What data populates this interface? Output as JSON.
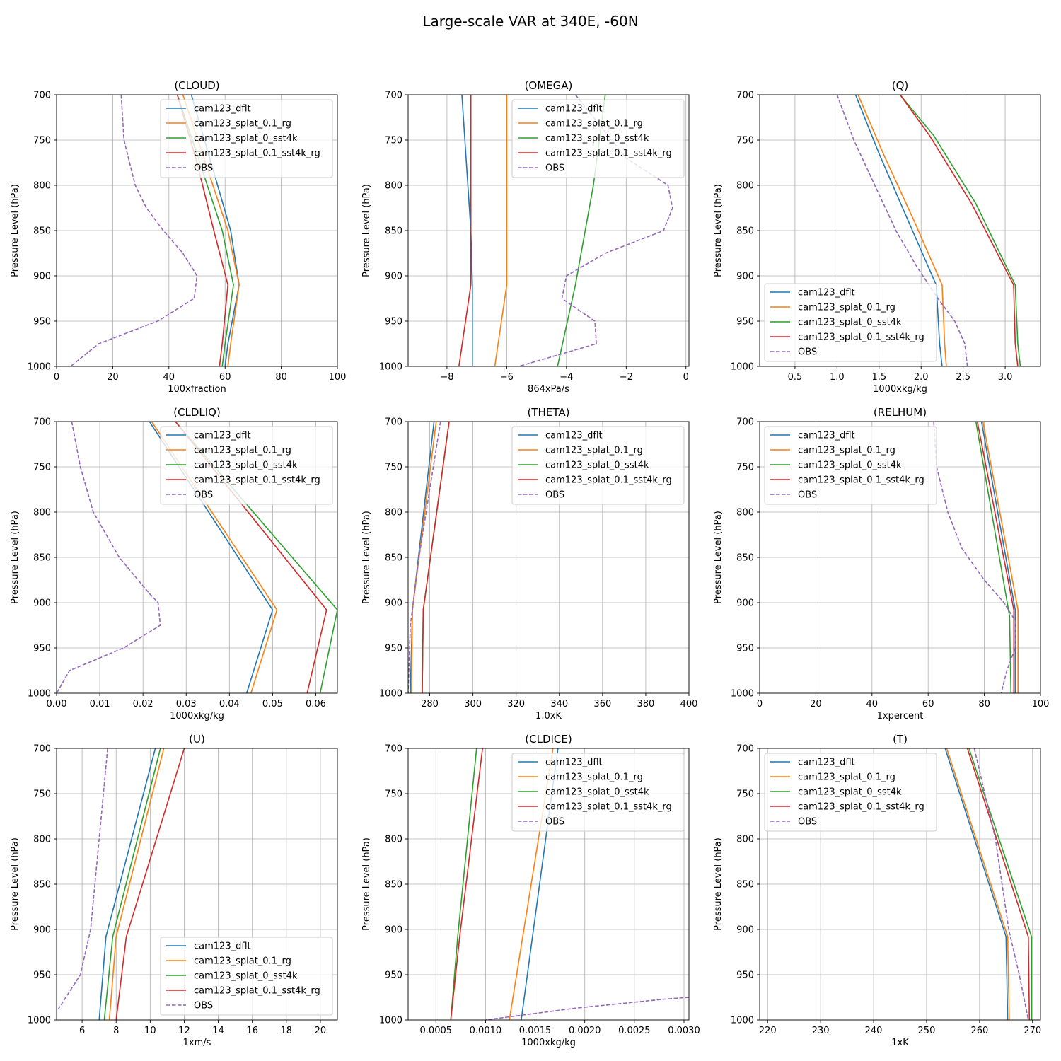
{
  "suptitle": "Large-scale VAR at 340E, -60N",
  "series_names": [
    "cam123_dflt",
    "cam123_splat_0.1_rg",
    "cam123_splat_0_sst4k",
    "cam123_splat_0.1_sst4k_rg",
    "OBS"
  ],
  "series_colors": [
    "#1f77b4",
    "#ff7f0e",
    "#2ca02c",
    "#d62728",
    "#9467bd"
  ],
  "chart_data": [
    {
      "type": "line",
      "title": "(CLOUD)",
      "xlabel": "100xfraction",
      "ylabel": "Pressure Level (hPa)",
      "xlim": [
        0,
        100
      ],
      "ylim": [
        1000,
        700
      ],
      "xticks": [
        0,
        20,
        40,
        60,
        80,
        100
      ],
      "xtick_labels": [
        "0",
        "20",
        "40",
        "60",
        "80",
        "100"
      ],
      "yticks": [
        700,
        750,
        800,
        850,
        900,
        950,
        1000
      ],
      "legend": "upper-right",
      "series": [
        {
          "name": "cam123_dflt",
          "x": [
            48,
            55,
            62,
            65,
            61,
            60
          ],
          "y": [
            700,
            775,
            850,
            910,
            975,
            1000
          ]
        },
        {
          "name": "cam123_splat_0.1_rg",
          "x": [
            45,
            53,
            61,
            65,
            62,
            61
          ],
          "y": [
            700,
            775,
            850,
            910,
            975,
            1000
          ]
        },
        {
          "name": "cam123_splat_0_sst4k",
          "x": [
            43,
            51,
            59,
            63,
            60,
            59
          ],
          "y": [
            700,
            775,
            850,
            910,
            975,
            1000
          ]
        },
        {
          "name": "cam123_splat_0.1_sst4k_rg",
          "x": [
            43,
            50,
            56,
            61,
            59,
            58
          ],
          "y": [
            700,
            775,
            850,
            910,
            975,
            1000
          ]
        },
        {
          "name": "OBS",
          "x": [
            23,
            24,
            26,
            28,
            32,
            38,
            45,
            50,
            49,
            36,
            15,
            5
          ],
          "y": [
            700,
            750,
            775,
            800,
            825,
            850,
            875,
            900,
            925,
            950,
            975,
            1000
          ]
        }
      ]
    },
    {
      "type": "line",
      "title": "(OMEGA)",
      "xlabel": "864xPa/s",
      "ylabel": "Pressure Level (hPa)",
      "xlim": [
        -9.3,
        0.1
      ],
      "ylim": [
        1000,
        700
      ],
      "xticks": [
        -8,
        -6,
        -4,
        -2,
        0
      ],
      "xtick_labels": [
        "−8",
        "−6",
        "−4",
        "−2",
        "0"
      ],
      "yticks": [
        700,
        750,
        800,
        850,
        900,
        950,
        1000
      ],
      "legend": "upper-right",
      "series": [
        {
          "name": "cam123_dflt",
          "x": [
            -7.5,
            -7.2,
            -7.15,
            -7.15
          ],
          "y": [
            700,
            850,
            910,
            1000
          ]
        },
        {
          "name": "cam123_splat_0.1_rg",
          "x": [
            -6.0,
            -6.0,
            -6.0,
            -6.4
          ],
          "y": [
            700,
            850,
            910,
            1000
          ]
        },
        {
          "name": "cam123_splat_0_sst4k",
          "x": [
            -2.7,
            -3.1,
            -3.7,
            -4.3
          ],
          "y": [
            700,
            800,
            910,
            1000
          ]
        },
        {
          "name": "cam123_splat_0.1_sst4k_rg",
          "x": [
            -7.2,
            -7.2,
            -7.2,
            -7.6
          ],
          "y": [
            700,
            850,
            910,
            1000
          ]
        },
        {
          "name": "OBS",
          "x": [
            -3.7,
            -2.0,
            -0.6,
            -0.45,
            -0.75,
            -2.7,
            -4.0,
            -4.15,
            -3.05,
            -3.0,
            -5.6
          ],
          "y": [
            700,
            770,
            800,
            825,
            850,
            875,
            900,
            925,
            950,
            975,
            1000
          ]
        }
      ]
    },
    {
      "type": "line",
      "title": "(Q)",
      "xlabel": "1000xkg/kg",
      "ylabel": "Pressure Level (hPa)",
      "xlim": [
        0.08,
        3.42
      ],
      "ylim": [
        1000,
        700
      ],
      "xticks": [
        0.5,
        1.0,
        1.5,
        2.0,
        2.5,
        3.0
      ],
      "xtick_labels": [
        "0.5",
        "1.0",
        "1.5",
        "2.0",
        "2.5",
        "3.0"
      ],
      "yticks": [
        700,
        750,
        800,
        850,
        900,
        950,
        1000
      ],
      "legend": "lower-left",
      "series": [
        {
          "name": "cam123_dflt",
          "x": [
            1.22,
            1.5,
            1.85,
            2.18,
            2.22,
            2.25
          ],
          "y": [
            700,
            765,
            840,
            910,
            975,
            1000
          ]
        },
        {
          "name": "cam123_splat_0.1_rg",
          "x": [
            1.25,
            1.55,
            1.92,
            2.25,
            2.28,
            2.3
          ],
          "y": [
            700,
            765,
            840,
            910,
            975,
            1000
          ]
        },
        {
          "name": "cam123_splat_0_sst4k",
          "x": [
            1.75,
            2.15,
            2.65,
            3.12,
            3.15,
            3.18
          ],
          "y": [
            700,
            745,
            820,
            910,
            975,
            1000
          ]
        },
        {
          "name": "cam123_splat_0.1_sst4k_rg",
          "x": [
            1.75,
            2.1,
            2.6,
            3.1,
            3.12,
            3.15
          ],
          "y": [
            700,
            745,
            820,
            910,
            975,
            1000
          ]
        },
        {
          "name": "OBS",
          "x": [
            1.0,
            1.2,
            1.45,
            1.7,
            1.95,
            2.2,
            2.4,
            2.52,
            2.55
          ],
          "y": [
            700,
            750,
            800,
            850,
            890,
            925,
            950,
            975,
            1000
          ]
        }
      ]
    },
    {
      "type": "line",
      "title": "(CLDLIQ)",
      "xlabel": "1000xkg/kg",
      "ylabel": "Pressure Level (hPa)",
      "xlim": [
        0,
        0.065
      ],
      "ylim": [
        1000,
        700
      ],
      "xticks": [
        0,
        0.01,
        0.02,
        0.03,
        0.04,
        0.05,
        0.06
      ],
      "xtick_labels": [
        "0.00",
        "0.01",
        "0.02",
        "0.03",
        "0.04",
        "0.05",
        "0.06"
      ],
      "yticks": [
        700,
        750,
        800,
        850,
        900,
        950,
        1000
      ],
      "legend": "upper-right",
      "series": [
        {
          "name": "cam123_dflt",
          "x": [
            0.0215,
            0.05,
            0.044
          ],
          "y": [
            700,
            908,
            1000
          ]
        },
        {
          "name": "cam123_splat_0.1_rg",
          "x": [
            0.022,
            0.051,
            0.045
          ],
          "y": [
            700,
            908,
            1000
          ]
        },
        {
          "name": "cam123_splat_0_sst4k",
          "x": [
            0.0275,
            0.065,
            0.061
          ],
          "y": [
            700,
            908,
            1000
          ]
        },
        {
          "name": "cam123_splat_0.1_sst4k_rg",
          "x": [
            0.0275,
            0.0625,
            0.058
          ],
          "y": [
            700,
            908,
            1000
          ]
        },
        {
          "name": "OBS",
          "x": [
            0.0035,
            0.0055,
            0.0085,
            0.0145,
            0.0215,
            0.0235,
            0.024,
            0.0155,
            0.003,
            0.0
          ],
          "y": [
            700,
            750,
            800,
            850,
            890,
            900,
            925,
            950,
            975,
            1000
          ]
        }
      ]
    },
    {
      "type": "line",
      "title": "(THETA)",
      "xlabel": "1.0xK",
      "ylabel": "Pressure Level (hPa)",
      "xlim": [
        270,
        400
      ],
      "ylim": [
        1000,
        700
      ],
      "xticks": [
        280,
        300,
        320,
        340,
        360,
        380,
        400
      ],
      "xtick_labels": [
        "280",
        "300",
        "320",
        "340",
        "360",
        "380",
        "400"
      ],
      "yticks": [
        700,
        750,
        800,
        850,
        900,
        950,
        1000
      ],
      "legend": "upper-right",
      "series": [
        {
          "name": "cam123_dflt",
          "x": [
            282,
            272,
            271
          ],
          "y": [
            700,
            908,
            1000
          ]
        },
        {
          "name": "cam123_splat_0.1_rg",
          "x": [
            283,
            272,
            271.5
          ],
          "y": [
            700,
            908,
            1000
          ]
        },
        {
          "name": "cam123_splat_0_sst4k",
          "x": [
            289,
            277,
            276.5
          ],
          "y": [
            700,
            908,
            1000
          ]
        },
        {
          "name": "cam123_splat_0.1_sst4k_rg",
          "x": [
            289,
            277,
            276.5
          ],
          "y": [
            700,
            908,
            1000
          ]
        },
        {
          "name": "OBS",
          "x": [
            285,
            280,
            275,
            271,
            270
          ],
          "y": [
            700,
            775,
            850,
            925,
            1000
          ]
        }
      ]
    },
    {
      "type": "line",
      "title": "(RELHUM)",
      "xlabel": "1xpercent",
      "ylabel": "Pressure Level (hPa)",
      "xlim": [
        0,
        100
      ],
      "ylim": [
        1000,
        700
      ],
      "xticks": [
        0,
        20,
        40,
        60,
        80,
        100
      ],
      "xtick_labels": [
        "0",
        "20",
        "40",
        "60",
        "80",
        "100"
      ],
      "yticks": [
        700,
        750,
        800,
        850,
        900,
        950,
        1000
      ],
      "legend": "upper-left",
      "series": [
        {
          "name": "cam123_dflt",
          "x": [
            79,
            91,
            91
          ],
          "y": [
            700,
            908,
            1000
          ]
        },
        {
          "name": "cam123_splat_0.1_rg",
          "x": [
            79.5,
            92,
            92
          ],
          "y": [
            700,
            908,
            1000
          ]
        },
        {
          "name": "cam123_splat_0_sst4k",
          "x": [
            77,
            89,
            89.5
          ],
          "y": [
            700,
            915,
            1000
          ]
        },
        {
          "name": "cam123_splat_0.1_sst4k_rg",
          "x": [
            77.5,
            90.5,
            90.5
          ],
          "y": [
            700,
            908,
            1000
          ]
        },
        {
          "name": "OBS",
          "x": [
            62,
            63,
            67,
            72,
            80,
            87,
            91,
            91,
            88,
            86
          ],
          "y": [
            700,
            750,
            800,
            840,
            875,
            900,
            920,
            950,
            975,
            1000
          ]
        }
      ]
    },
    {
      "type": "line",
      "title": "(U)",
      "xlabel": "1xm/s",
      "ylabel": "Pressure Level (hPa)",
      "xlim": [
        4.5,
        21
      ],
      "ylim": [
        1000,
        700
      ],
      "xticks": [
        6,
        8,
        10,
        12,
        14,
        16,
        18,
        20
      ],
      "xtick_labels": [
        "6",
        "8",
        "10",
        "12",
        "14",
        "16",
        "18",
        "20"
      ],
      "yticks": [
        700,
        750,
        800,
        850,
        900,
        950,
        1000
      ],
      "legend": "lower-right",
      "series": [
        {
          "name": "cam123_dflt",
          "x": [
            10.3,
            7.4,
            7.0
          ],
          "y": [
            700,
            908,
            1000
          ]
        },
        {
          "name": "cam123_splat_0.1_rg",
          "x": [
            10.8,
            8.0,
            7.6
          ],
          "y": [
            700,
            908,
            1000
          ]
        },
        {
          "name": "cam123_splat_0_sst4k",
          "x": [
            10.6,
            7.8,
            7.3
          ],
          "y": [
            700,
            908,
            1000
          ]
        },
        {
          "name": "cam123_splat_0.1_sst4k_rg",
          "x": [
            12.0,
            8.6,
            8.0
          ],
          "y": [
            700,
            908,
            1000
          ]
        },
        {
          "name": "OBS",
          "x": [
            7.5,
            7.0,
            6.5,
            5.9,
            4.6
          ],
          "y": [
            700,
            800,
            900,
            950,
            988
          ]
        }
      ]
    },
    {
      "type": "line",
      "title": "(CLDICE)",
      "xlabel": "1000xkg/kg",
      "ylabel": "Pressure Level (hPa)",
      "xlim": [
        0.00022,
        0.00305
      ],
      "ylim": [
        1000,
        700
      ],
      "xticks": [
        0.0005,
        0.001,
        0.0015,
        0.002,
        0.0025,
        0.003
      ],
      "xtick_labels": [
        "0.0005",
        "0.0010",
        "0.0015",
        "0.0020",
        "0.0025",
        "0.0030"
      ],
      "yticks": [
        700,
        750,
        800,
        850,
        900,
        950,
        1000
      ],
      "legend": "upper-right",
      "series": [
        {
          "name": "cam123_dflt",
          "x": [
            0.00173,
            0.00136
          ],
          "y": [
            700,
            1000
          ]
        },
        {
          "name": "cam123_splat_0.1_rg",
          "x": [
            0.00168,
            0.00124
          ],
          "y": [
            700,
            1000
          ]
        },
        {
          "name": "cam123_splat_0_sst4k",
          "x": [
            0.00091,
            0.00072,
            0.00065
          ],
          "y": [
            700,
            908,
            1000
          ]
        },
        {
          "name": "cam123_splat_0.1_sst4k_rg",
          "x": [
            0.00097,
            0.00074,
            0.00065
          ],
          "y": [
            700,
            908,
            1000
          ]
        },
        {
          "name": "OBS",
          "x": [
            0.00305,
            0.0028,
            0.0019,
            0.001
          ],
          "y": [
            975,
            977,
            987,
            1000
          ]
        }
      ]
    },
    {
      "type": "line",
      "title": "(T)",
      "xlabel": "1xK",
      "ylabel": "Pressure Level (hPa)",
      "xlim": [
        218.5,
        271.5
      ],
      "ylim": [
        1000,
        700
      ],
      "xticks": [
        220,
        230,
        240,
        250,
        260,
        270
      ],
      "xtick_labels": [
        "220",
        "230",
        "240",
        "250",
        "260",
        "270"
      ],
      "yticks": [
        700,
        750,
        800,
        850,
        900,
        950,
        1000
      ],
      "legend": "upper-left",
      "series": [
        {
          "name": "cam123_dflt",
          "x": [
            253.5,
            265.0,
            265.3
          ],
          "y": [
            700,
            908,
            1000
          ]
        },
        {
          "name": "cam123_splat_0.1_rg",
          "x": [
            253.8,
            265.3,
            265.6
          ],
          "y": [
            700,
            908,
            1000
          ]
        },
        {
          "name": "cam123_splat_0_sst4k",
          "x": [
            258.0,
            269.8,
            269.8
          ],
          "y": [
            700,
            908,
            1000
          ]
        },
        {
          "name": "cam123_splat_0.1_sst4k_rg",
          "x": [
            257.7,
            269.2,
            269.4
          ],
          "y": [
            700,
            908,
            1000
          ]
        },
        {
          "name": "OBS",
          "x": [
            259.0,
            261.0,
            263.0,
            265.5,
            267.5,
            269.2
          ],
          "y": [
            700,
            750,
            800,
            900,
            950,
            1000
          ]
        }
      ]
    }
  ]
}
